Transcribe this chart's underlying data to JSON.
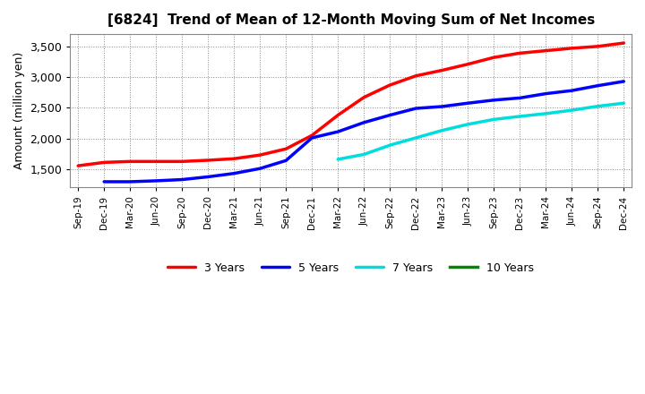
{
  "title": "[6824]  Trend of Mean of 12-Month Moving Sum of Net Incomes",
  "ylabel": "Amount (million yen)",
  "ylim": [
    1200,
    3700
  ],
  "yticks": [
    1500,
    2000,
    2500,
    3000,
    3500
  ],
  "background_color": "#ffffff",
  "grid_color": "#aaaaaa",
  "xtick_labels": [
    "Sep-19",
    "Dec-19",
    "Mar-20",
    "Jun-20",
    "Sep-20",
    "Dec-20",
    "Mar-21",
    "Jun-21",
    "Sep-21",
    "Dec-21",
    "Mar-22",
    "Jun-22",
    "Sep-22",
    "Dec-22",
    "Mar-23",
    "Jun-23",
    "Sep-23",
    "Dec-23",
    "Mar-24",
    "Jun-24",
    "Sep-24",
    "Dec-24"
  ],
  "lines": [
    {
      "label": "3 Years",
      "color": "#ff0000",
      "dates": [
        "Sep-19",
        "Dec-19",
        "Mar-20",
        "Jun-20",
        "Sep-20",
        "Dec-20",
        "Mar-21",
        "Jun-21",
        "Sep-21",
        "Dec-21",
        "Mar-22",
        "Jun-22",
        "Sep-22",
        "Dec-22",
        "Mar-23",
        "Jun-23",
        "Sep-23",
        "Dec-23",
        "Mar-24",
        "Jun-24",
        "Sep-24",
        "Dec-24"
      ],
      "values": [
        1555,
        1610,
        1625,
        1625,
        1625,
        1645,
        1670,
        1730,
        1830,
        2050,
        2380,
        2670,
        2870,
        3020,
        3110,
        3210,
        3320,
        3390,
        3430,
        3470,
        3500,
        3555
      ]
    },
    {
      "label": "5 Years",
      "color": "#0000ff",
      "dates": [
        "Dec-19",
        "Mar-20",
        "Jun-20",
        "Sep-20",
        "Dec-20",
        "Mar-21",
        "Jun-21",
        "Sep-21",
        "Dec-21",
        "Mar-22",
        "Jun-22",
        "Sep-22",
        "Dec-22",
        "Mar-23",
        "Jun-23",
        "Sep-23",
        "Dec-23",
        "Mar-24",
        "Jun-24",
        "Sep-24",
        "Dec-24"
      ],
      "values": [
        1295,
        1295,
        1310,
        1330,
        1375,
        1430,
        1510,
        1640,
        2010,
        2110,
        2260,
        2380,
        2490,
        2520,
        2575,
        2625,
        2660,
        2730,
        2780,
        2860,
        2930
      ]
    },
    {
      "label": "7 Years",
      "color": "#00dddd",
      "dates": [
        "Mar-22",
        "Jun-22",
        "Sep-22",
        "Dec-22",
        "Mar-23",
        "Jun-23",
        "Sep-23",
        "Dec-23",
        "Mar-24",
        "Jun-24",
        "Sep-24",
        "Dec-24"
      ],
      "values": [
        1660,
        1740,
        1890,
        2010,
        2130,
        2230,
        2310,
        2360,
        2405,
        2460,
        2525,
        2575
      ]
    },
    {
      "label": "10 Years",
      "color": "#008800",
      "dates": [],
      "values": []
    }
  ]
}
